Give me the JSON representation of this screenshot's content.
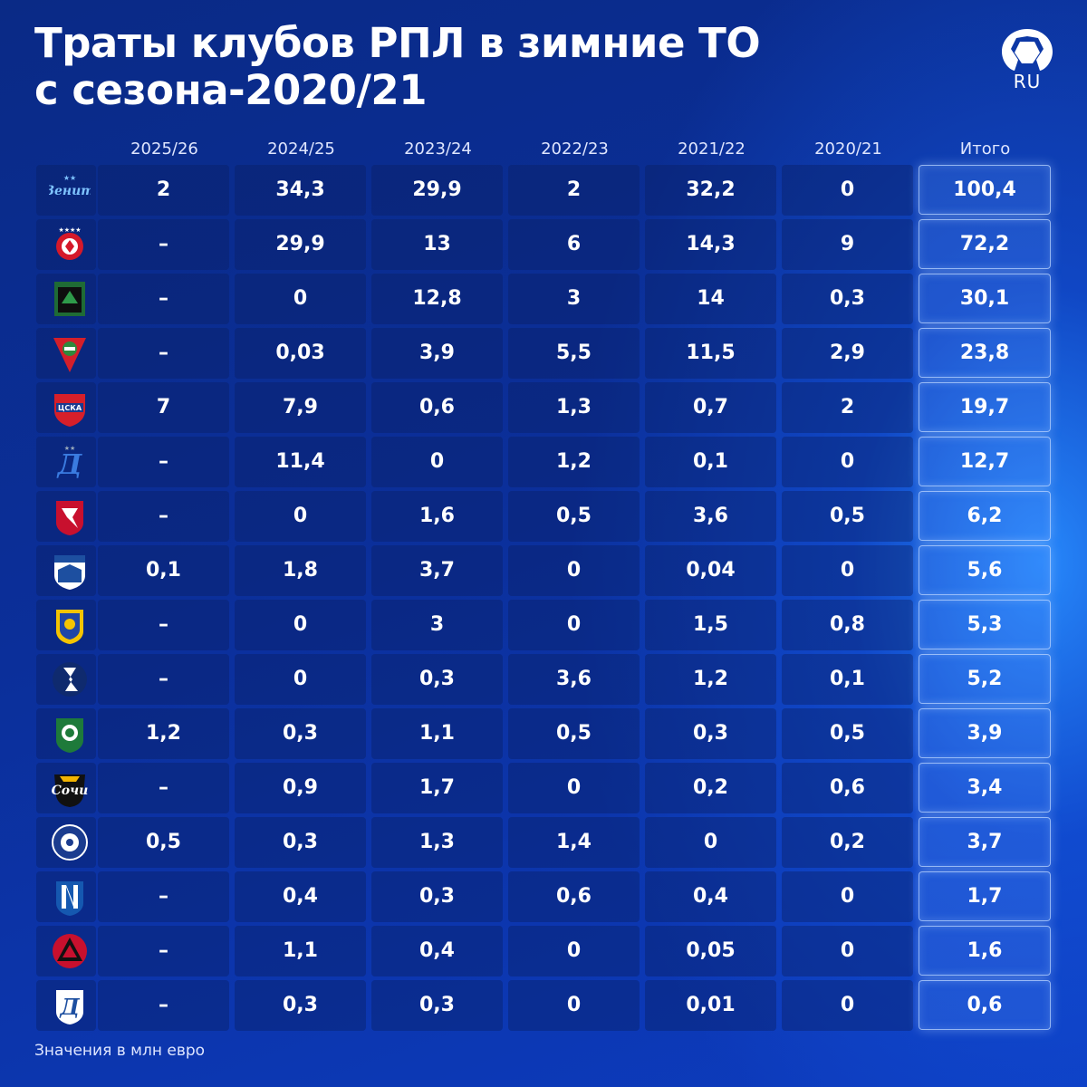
{
  "title_lines": [
    "Траты клубов РПЛ в зимние ТО",
    "с сезона-2020/21"
  ],
  "brand_label": "RU",
  "footnote": "Значения в млн евро",
  "chart_data": {
    "type": "table",
    "columns": [
      "2025/26",
      "2024/25",
      "2023/24",
      "2022/23",
      "2021/22",
      "2020/21",
      "Итого"
    ],
    "rows": [
      {
        "logo": "zenit-logo",
        "values": [
          "2",
          "34,3",
          "29,9",
          "2",
          "32,2",
          "0",
          "100,4"
        ]
      },
      {
        "logo": "spartak-logo",
        "values": [
          "–",
          "29,9",
          "13",
          "6",
          "14,3",
          "9",
          "72,2"
        ]
      },
      {
        "logo": "krasnodar-logo",
        "values": [
          "–",
          "0",
          "12,8",
          "3",
          "14",
          "0,3",
          "30,1"
        ]
      },
      {
        "logo": "lokomotiv-logo",
        "values": [
          "–",
          "0,03",
          "3,9",
          "5,5",
          "11,5",
          "2,9",
          "23,8"
        ]
      },
      {
        "logo": "cska-logo",
        "values": [
          "7",
          "7,9",
          "0,6",
          "1,3",
          "0,7",
          "2",
          "19,7"
        ]
      },
      {
        "logo": "dynamo-logo",
        "values": [
          "–",
          "11,4",
          "0",
          "1,2",
          "0,1",
          "0",
          "12,7"
        ]
      },
      {
        "logo": "rubin-logo",
        "values": [
          "–",
          "0",
          "1,6",
          "0,5",
          "3,6",
          "0,5",
          "6,2"
        ]
      },
      {
        "logo": "baltika-logo",
        "values": [
          "0,1",
          "1,8",
          "3,7",
          "0",
          "0,04",
          "0",
          "5,6"
        ]
      },
      {
        "logo": "rostov-logo",
        "values": [
          "–",
          "0",
          "3",
          "0",
          "1,5",
          "0,8",
          "5,3"
        ]
      },
      {
        "logo": "krylia-logo",
        "values": [
          "–",
          "0",
          "0,3",
          "3,6",
          "1,2",
          "0,1",
          "5,2"
        ]
      },
      {
        "logo": "akhmat-logo",
        "values": [
          "1,2",
          "0,3",
          "1,1",
          "0,5",
          "0,3",
          "0,5",
          "3,9"
        ]
      },
      {
        "logo": "sochi-logo",
        "values": [
          "–",
          "0,9",
          "1,7",
          "0",
          "0,2",
          "0,6",
          "3,4"
        ]
      },
      {
        "logo": "orenburg-logo",
        "values": [
          "0,5",
          "0,3",
          "1,3",
          "1,4",
          "0",
          "0,2",
          "3,7"
        ]
      },
      {
        "logo": "pari-nn-logo",
        "values": [
          "–",
          "0,4",
          "0,3",
          "0,6",
          "0,4",
          "0",
          "1,7"
        ]
      },
      {
        "logo": "akron-logo",
        "values": [
          "–",
          "1,1",
          "0,4",
          "0",
          "0,05",
          "0",
          "1,6"
        ]
      },
      {
        "logo": "dynamo-mk-logo",
        "values": [
          "–",
          "0,3",
          "0,3",
          "0",
          "0,01",
          "0",
          "0,6"
        ]
      }
    ]
  }
}
